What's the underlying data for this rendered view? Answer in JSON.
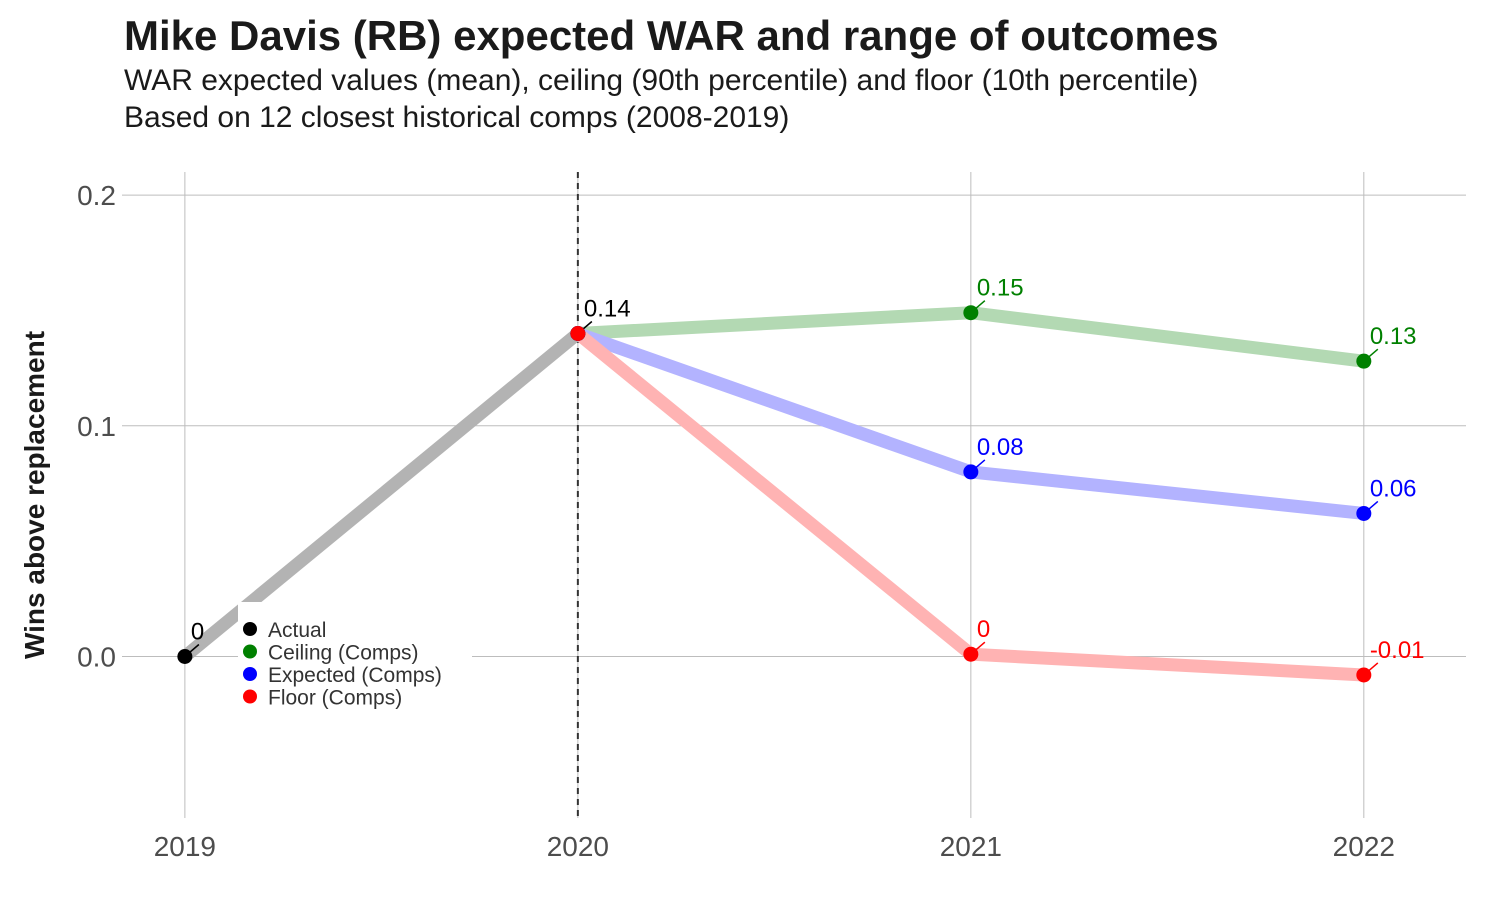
{
  "title": "Mike Davis (RB) expected WAR and range of outcomes",
  "subtitle_line1": "WAR expected values (mean), ceiling (90th percentile) and floor (10th percentile)",
  "subtitle_line2": "Based on 12 closest historical comps (2008-2019)",
  "chart_data": {
    "type": "line",
    "x": [
      2019,
      2020,
      2021,
      2022
    ],
    "x_tick_labels": [
      "2019",
      "2020",
      "2021",
      "2022"
    ],
    "ylabel": "Wins above replacement",
    "xlabel": "",
    "ylim": [
      -0.07,
      0.21
    ],
    "y_ticks": [
      0.0,
      0.1,
      0.2
    ],
    "y_tick_labels": [
      "0.0",
      "0.1",
      "0.2"
    ],
    "grid": true,
    "vline_x": 2020,
    "legend_position": "bottom-left",
    "series": [
      {
        "name": "Actual",
        "color": "#000000",
        "line_color": "#b3b3b3",
        "x": [
          2019,
          2020
        ],
        "values": [
          0.0,
          0.14
        ],
        "labels": [
          "0",
          "0.14"
        ]
      },
      {
        "name": "Ceiling (Comps)",
        "color": "#008000",
        "line_color": "#b3d9b3",
        "x": [
          2020,
          2021,
          2022
        ],
        "values": [
          0.14,
          0.149,
          0.128
        ],
        "labels": [
          "",
          "0.15",
          "0.13"
        ]
      },
      {
        "name": "Expected (Comps)",
        "color": "#0000ff",
        "line_color": "#b3b3ff",
        "x": [
          2020,
          2021,
          2022
        ],
        "values": [
          0.14,
          0.08,
          0.062
        ],
        "labels": [
          "",
          "0.08",
          "0.06"
        ]
      },
      {
        "name": "Floor (Comps)",
        "color": "#ff0000",
        "line_color": "#ffb3b3",
        "x": [
          2020,
          2021,
          2022
        ],
        "values": [
          0.14,
          0.001,
          -0.008
        ],
        "labels": [
          "",
          "0",
          "-0.01"
        ]
      }
    ]
  }
}
